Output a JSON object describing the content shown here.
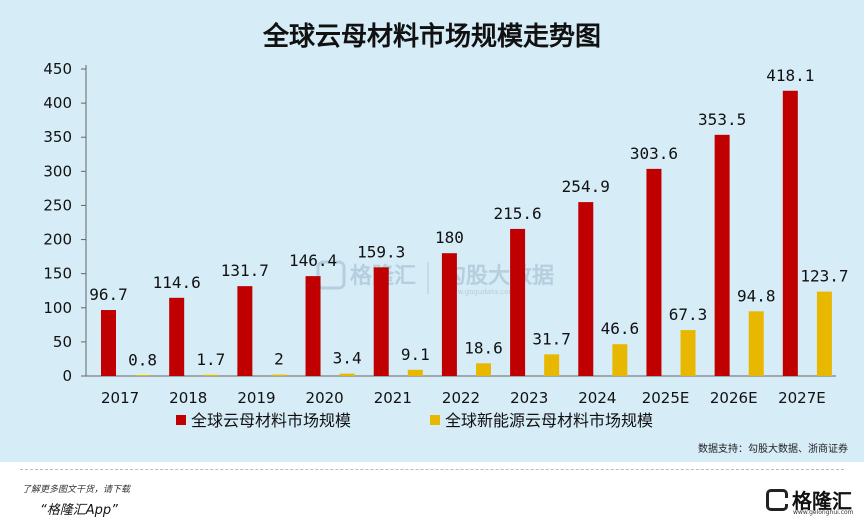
{
  "chart_data": {
    "type": "bar",
    "title": "全球云母材料市场规模走势图",
    "categories": [
      "2017",
      "2018",
      "2019",
      "2020",
      "2021",
      "2022",
      "2023",
      "2024",
      "2025E",
      "2026E",
      "2027E"
    ],
    "series": [
      {
        "name": "全球云母材料市场规模",
        "color": "#c00000",
        "values": [
          96.7,
          114.6,
          131.7,
          146.4,
          159.3,
          180,
          215.6,
          254.9,
          303.6,
          353.5,
          418.1
        ],
        "labels": [
          "96.7",
          "114.6",
          "131.7",
          "146.4",
          "159.3",
          "180",
          "215.6",
          "254.9",
          "303.6",
          "353.5",
          "418.1"
        ]
      },
      {
        "name": "全球新能源云母材料市场规模",
        "color": "#e8b800",
        "values": [
          0.8,
          1.7,
          2,
          3.4,
          9.1,
          18.6,
          31.7,
          46.6,
          67.3,
          94.8,
          123.7
        ],
        "labels": [
          "0.8",
          "1.7",
          "2",
          "3.4",
          "9.1",
          "18.6",
          "31.7",
          "46.6",
          "67.3",
          "94.8",
          "123.7"
        ]
      }
    ],
    "ylim": [
      0,
      450
    ],
    "yticks": [
      "0",
      "50",
      "100",
      "150",
      "200",
      "250",
      "300",
      "350",
      "400",
      "450"
    ],
    "xlabel": "",
    "ylabel": "",
    "grid": false,
    "legend_position": "bottom"
  },
  "source": "数据支持：勾股大数据、浙商证券",
  "watermark": {
    "brand1": "格隆汇",
    "brand2": "勾股大数据",
    "url": "www.gogudata.com"
  },
  "footer": {
    "line1": "了解更多图文干货，请下载",
    "line2": "“格隆汇App”",
    "logo_text": "格隆汇",
    "logo_url": "www.gelonghui.com"
  }
}
